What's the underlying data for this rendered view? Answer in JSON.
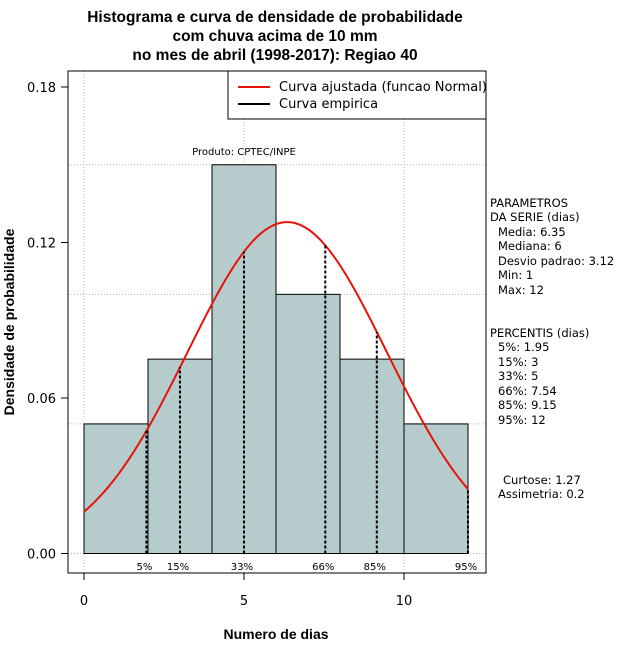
{
  "chart_data": {
    "type": "bar",
    "title_lines": [
      "Histograma e curva de densidade de probabilidade",
      "com chuva acima de 10 mm",
      "no mes de abril (1998-2017): Regiao 40"
    ],
    "xlabel": "Numero de dias",
    "ylabel": "Densidade de probabilidade",
    "xlim": [
      -0.5,
      12.5
    ],
    "ylim": [
      0,
      0.18
    ],
    "x_ticks": [
      {
        "value": 0,
        "label": "0"
      },
      {
        "value": 5,
        "label": "5"
      },
      {
        "value": 10,
        "label": "10"
      }
    ],
    "y_ticks": [
      {
        "value": 0.0,
        "label": "0.00"
      },
      {
        "value": 0.06,
        "label": "0.06"
      },
      {
        "value": 0.12,
        "label": "0.12"
      },
      {
        "value": 0.18,
        "label": "0.18"
      }
    ],
    "grid_y": [
      0.0,
      0.05,
      0.1,
      0.15
    ],
    "grid_x": [
      0,
      5,
      10
    ],
    "bins": [
      {
        "start": 0,
        "end": 2,
        "density": 0.05
      },
      {
        "start": 2,
        "end": 4,
        "density": 0.075
      },
      {
        "start": 4,
        "end": 6,
        "density": 0.15
      },
      {
        "start": 6,
        "end": 8,
        "density": 0.1
      },
      {
        "start": 8,
        "end": 10,
        "density": 0.075
      },
      {
        "start": 10,
        "end": 12,
        "density": 0.05
      }
    ],
    "normal_fit": {
      "mean": 6.35,
      "sd": 3.12,
      "x_from": 0,
      "x_to": 12
    },
    "percentile_markers": [
      {
        "x": 1.95,
        "label": "5%"
      },
      {
        "x": 3,
        "label": "15%"
      },
      {
        "x": 5,
        "label": "33%"
      },
      {
        "x": 7.54,
        "label": "66%"
      },
      {
        "x": 9.15,
        "label": "85%"
      },
      {
        "x": 12,
        "label": "95%"
      }
    ],
    "legend": [
      {
        "label": "Curva ajustada (funcao Normal)",
        "color": "#e8120c"
      },
      {
        "label": "Curva empirica",
        "color": "#000000"
      }
    ],
    "source_note": "Produto: CPTEC/INPE",
    "colors": {
      "bar_fill": "#b6cccc",
      "curve": "#e8120c",
      "grid": "#b3b3b3"
    }
  },
  "side_panel": {
    "params_header": [
      "PARAMETROS",
      "DA SERIE (dias)"
    ],
    "params": [
      "Media: 6.35",
      "Mediana: 6",
      "Desvio padrao: 3.12",
      "Min: 1",
      "Max: 12"
    ],
    "pct_header": "PERCENTIS (dias)",
    "pcts": [
      "5%: 1.95",
      "15%: 3",
      "33%: 5",
      "66%: 7.54",
      "85%: 9.15",
      "95%: 12"
    ],
    "curtose": "Curtose: 1.27",
    "assimetria": "Assimetria: 0.2"
  }
}
